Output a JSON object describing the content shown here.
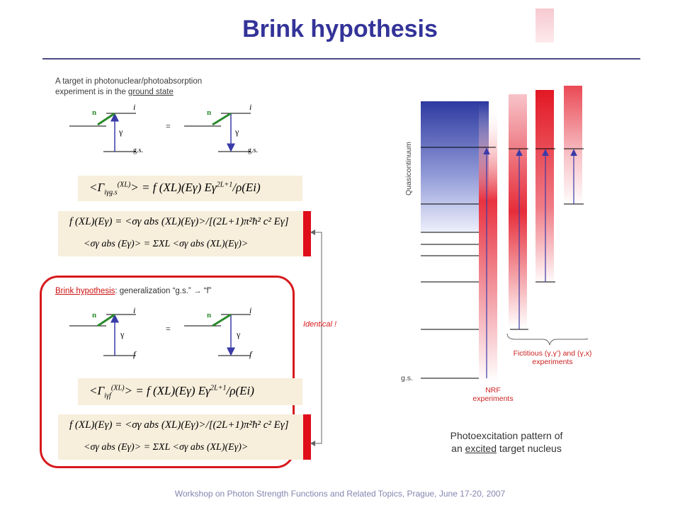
{
  "title": "Brink hypothesis",
  "intro": {
    "line1": "A target in photonuclear/photoabsorption",
    "line2_prefix": "experiment is in the ",
    "line2_underlined": "ground state"
  },
  "diagram_labels": {
    "n": "n",
    "i": "i",
    "gamma": "γ",
    "gs": "g.s.",
    "equals": "=",
    "f": "f"
  },
  "formulas": {
    "width_gs": {
      "lhs": "<Γ",
      "lhs_sub": "iγg.s",
      "lhs_sup": "(XL)",
      "rhs": "> = f (XL)(Eγ) Eγ",
      "rhs_sup": "2L+1",
      "tail": "/ρ(Ei)"
    },
    "strength_gs_line1": "f (XL)(Eγ) = <σγ abs (XL)(Eγ)>/[(2L+1)π²ħ² c² Eγ]",
    "strength_gs_line2": "<σγ abs (Eγ)> = ΣXL <σγ abs (XL)(Eγ)>",
    "width_f": {
      "lhs": "<Γ",
      "lhs_sub": "iγf",
      "lhs_sup": "(XL)",
      "rhs": "> = f (XL)(Eγ) Eγ",
      "rhs_sup": "2L+1",
      "tail": "/ρ(Ei)"
    },
    "strength_f_line1": "f (XL)(Eγ) = <σγ abs (XL)(Eγ)>/[(2L+1)π²ħ² c² Eγ]",
    "strength_f_line2": "<σγ abs (Eγ)> = ΣXL <σγ abs (XL)(Eγ)>"
  },
  "brink": {
    "label": "Brink hypothesis",
    "text": ": generalization “g.s.” → “f”"
  },
  "identical": "Identical !",
  "level_scheme": {
    "quasicontinuum": "Quasicontinuum",
    "gs": "g.s.",
    "nrf_line1": "NRF",
    "nrf_line2": "experiments",
    "fictitious_line1": "Fictitious (γ,γ’) and (γ,x)",
    "fictitious_line2": "experiments"
  },
  "caption": {
    "line1": "Photoexcitation pattern of",
    "line2_prefix": "an ",
    "line2_underlined": "excited",
    "line2_suffix": " target nucleus"
  },
  "footer": "Workshop on Photon Strength Functions and Related Topics, Prague, June 17-20, 2007",
  "colors": {
    "title": "#333399",
    "accent_red": "#e00d1b",
    "formula_box": "#f7eedc",
    "quasicontinuum_top": "#2e3aa0",
    "arrow_blue": "#3a3aa8"
  }
}
